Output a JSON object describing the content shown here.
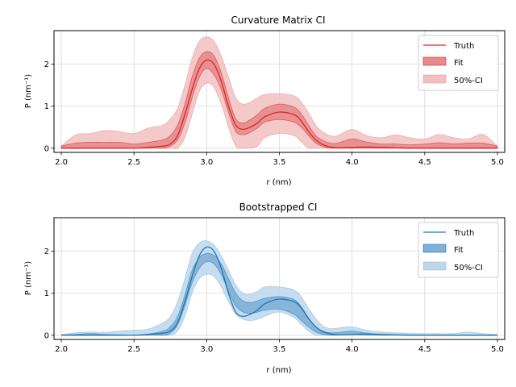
{
  "chart_data": [
    {
      "type": "line",
      "title": "Curvature Matrix CI",
      "xlabel": "r (nm)",
      "ylabel": "P (nm⁻¹)",
      "xlim": [
        1.95,
        5.05
      ],
      "ylim": [
        -0.1,
        2.8
      ],
      "xticks": [
        "2.0",
        "2.5",
        "3.0",
        "3.5",
        "4.0",
        "4.5",
        "5.0"
      ],
      "yticks": [
        "0",
        "1",
        "2"
      ],
      "grid": true,
      "legend_position": "top-right",
      "colors": {
        "line": "#d62728",
        "fit": "#e88a8b",
        "ci": "#f2c0c0",
        "edge": "#d62728"
      },
      "legend": [
        "Truth",
        "Fit",
        "50%-CI"
      ],
      "x": [
        2.0,
        2.1,
        2.2,
        2.3,
        2.4,
        2.5,
        2.6,
        2.7,
        2.75,
        2.8,
        2.85,
        2.9,
        2.95,
        3.0,
        3.05,
        3.1,
        3.15,
        3.2,
        3.25,
        3.3,
        3.35,
        3.4,
        3.5,
        3.6,
        3.65,
        3.7,
        3.75,
        3.8,
        3.85,
        3.9,
        4.0,
        4.1,
        4.2,
        4.3,
        4.4,
        4.5,
        4.6,
        4.7,
        4.8,
        4.9,
        5.0
      ],
      "series": [
        {
          "name": "Truth",
          "values": [
            0.0,
            0.0,
            0.0,
            0.0,
            0.0,
            0.0,
            0.02,
            0.05,
            0.1,
            0.3,
            0.8,
            1.4,
            1.9,
            2.1,
            2.0,
            1.6,
            1.0,
            0.55,
            0.45,
            0.5,
            0.6,
            0.75,
            0.86,
            0.8,
            0.65,
            0.4,
            0.2,
            0.08,
            0.03,
            0.01,
            0.02,
            0.03,
            0.02,
            0.01,
            0.0,
            0.0,
            0.0,
            0.0,
            0.0,
            0.0,
            0.0
          ]
        },
        {
          "name": "Fit",
          "lower": [
            0.0,
            0.0,
            0.0,
            0.0,
            0.0,
            0.0,
            0.0,
            0.0,
            0.05,
            0.2,
            0.6,
            1.2,
            1.7,
            1.9,
            1.75,
            1.4,
            0.85,
            0.4,
            0.32,
            0.38,
            0.48,
            0.62,
            0.68,
            0.62,
            0.5,
            0.3,
            0.12,
            0.04,
            0.0,
            0.0,
            0.0,
            0.0,
            0.0,
            0.0,
            0.0,
            0.0,
            0.0,
            0.0,
            0.0,
            0.0,
            0.0
          ],
          "upper": [
            0.05,
            0.12,
            0.14,
            0.14,
            0.14,
            0.1,
            0.14,
            0.2,
            0.3,
            0.55,
            1.05,
            1.7,
            2.15,
            2.3,
            2.2,
            1.8,
            1.2,
            0.7,
            0.6,
            0.68,
            0.8,
            0.95,
            1.05,
            0.98,
            0.82,
            0.55,
            0.3,
            0.18,
            0.12,
            0.12,
            0.22,
            0.15,
            0.1,
            0.1,
            0.08,
            0.1,
            0.13,
            0.1,
            0.12,
            0.12,
            0.05
          ]
        },
        {
          "name": "50%-CI",
          "lower": [
            0.0,
            0.0,
            0.0,
            0.0,
            0.0,
            0.0,
            0.0,
            0.0,
            0.0,
            0.0,
            0.25,
            0.8,
            1.35,
            1.55,
            1.45,
            1.05,
            0.5,
            0.05,
            0.0,
            0.0,
            0.05,
            0.25,
            0.35,
            0.3,
            0.15,
            0.0,
            0.0,
            0.0,
            0.0,
            0.0,
            0.0,
            0.0,
            0.0,
            0.0,
            0.0,
            0.0,
            0.0,
            0.0,
            0.0,
            0.0,
            0.0
          ],
          "upper": [
            0.05,
            0.32,
            0.35,
            0.42,
            0.4,
            0.35,
            0.48,
            0.55,
            0.7,
            0.95,
            1.5,
            2.15,
            2.55,
            2.65,
            2.55,
            2.2,
            1.7,
            1.2,
            1.05,
            1.1,
            1.2,
            1.28,
            1.3,
            1.25,
            1.1,
            0.85,
            0.55,
            0.38,
            0.3,
            0.3,
            0.45,
            0.3,
            0.25,
            0.32,
            0.25,
            0.22,
            0.33,
            0.25,
            0.22,
            0.33,
            0.05
          ]
        }
      ]
    },
    {
      "type": "line",
      "title": "Bootstrapped CI",
      "xlabel": "r (nm)",
      "ylabel": "P (nm⁻¹)",
      "xlim": [
        1.95,
        5.05
      ],
      "ylim": [
        -0.1,
        2.8
      ],
      "xticks": [
        "2.0",
        "2.5",
        "3.0",
        "3.5",
        "4.0",
        "4.5",
        "5.0"
      ],
      "yticks": [
        "0",
        "1",
        "2"
      ],
      "grid": true,
      "legend_position": "top-right",
      "colors": {
        "line": "#1f77b4",
        "fit": "#7fb0d6",
        "ci": "#bcd6ec",
        "edge": "#1f77b4"
      },
      "legend": [
        "Truth",
        "Fit",
        "50%-CI"
      ],
      "x": [
        2.0,
        2.1,
        2.2,
        2.3,
        2.4,
        2.5,
        2.6,
        2.7,
        2.75,
        2.8,
        2.85,
        2.9,
        2.95,
        3.0,
        3.05,
        3.1,
        3.15,
        3.2,
        3.25,
        3.3,
        3.35,
        3.4,
        3.5,
        3.6,
        3.65,
        3.7,
        3.75,
        3.8,
        3.85,
        3.9,
        4.0,
        4.1,
        4.2,
        4.3,
        4.4,
        4.5,
        4.6,
        4.7,
        4.8,
        4.9,
        5.0
      ],
      "series": [
        {
          "name": "Truth",
          "values": [
            0.0,
            0.0,
            0.0,
            0.0,
            0.0,
            0.0,
            0.02,
            0.05,
            0.1,
            0.3,
            0.8,
            1.4,
            1.9,
            2.1,
            2.0,
            1.6,
            1.0,
            0.55,
            0.45,
            0.5,
            0.6,
            0.75,
            0.86,
            0.8,
            0.65,
            0.4,
            0.2,
            0.08,
            0.03,
            0.01,
            0.02,
            0.03,
            0.02,
            0.01,
            0.0,
            0.0,
            0.0,
            0.0,
            0.0,
            0.0,
            0.0
          ]
        },
        {
          "name": "Fit",
          "lower": [
            0.0,
            0.0,
            0.0,
            0.0,
            0.0,
            0.0,
            0.0,
            0.0,
            0.05,
            0.25,
            0.7,
            1.25,
            1.6,
            1.75,
            1.7,
            1.45,
            1.05,
            0.7,
            0.55,
            0.52,
            0.55,
            0.6,
            0.62,
            0.5,
            0.35,
            0.2,
            0.08,
            0.02,
            0.0,
            0.0,
            0.02,
            0.0,
            0.0,
            0.0,
            0.0,
            0.0,
            0.0,
            0.0,
            0.0,
            0.0,
            0.0
          ],
          "upper": [
            0.0,
            0.02,
            0.04,
            0.02,
            0.01,
            0.0,
            0.03,
            0.1,
            0.2,
            0.45,
            0.95,
            1.55,
            1.85,
            1.95,
            1.9,
            1.7,
            1.35,
            1.0,
            0.82,
            0.78,
            0.82,
            0.88,
            0.92,
            0.85,
            0.68,
            0.42,
            0.2,
            0.1,
            0.06,
            0.06,
            0.1,
            0.05,
            0.02,
            0.0,
            0.0,
            0.0,
            0.0,
            0.0,
            0.0,
            0.0,
            0.0
          ]
        },
        {
          "name": "50%-CI",
          "lower": [
            0.0,
            0.0,
            0.0,
            0.0,
            0.0,
            0.0,
            0.0,
            0.0,
            0.0,
            0.1,
            0.45,
            1.0,
            1.35,
            1.45,
            1.4,
            1.15,
            0.8,
            0.5,
            0.38,
            0.35,
            0.38,
            0.45,
            0.55,
            0.42,
            0.25,
            0.1,
            0.0,
            0.0,
            0.0,
            0.0,
            0.0,
            0.0,
            0.0,
            0.0,
            0.0,
            0.0,
            0.0,
            0.0,
            0.0,
            0.0,
            0.0
          ],
          "upper": [
            0.02,
            0.06,
            0.08,
            0.07,
            0.1,
            0.12,
            0.15,
            0.3,
            0.45,
            0.8,
            1.35,
            1.95,
            2.2,
            2.25,
            2.15,
            1.9,
            1.55,
            1.2,
            1.0,
            0.98,
            1.05,
            1.15,
            1.15,
            1.08,
            0.92,
            0.65,
            0.4,
            0.22,
            0.16,
            0.17,
            0.2,
            0.12,
            0.08,
            0.06,
            0.05,
            0.04,
            0.04,
            0.04,
            0.08,
            0.04,
            0.02
          ]
        }
      ]
    }
  ]
}
